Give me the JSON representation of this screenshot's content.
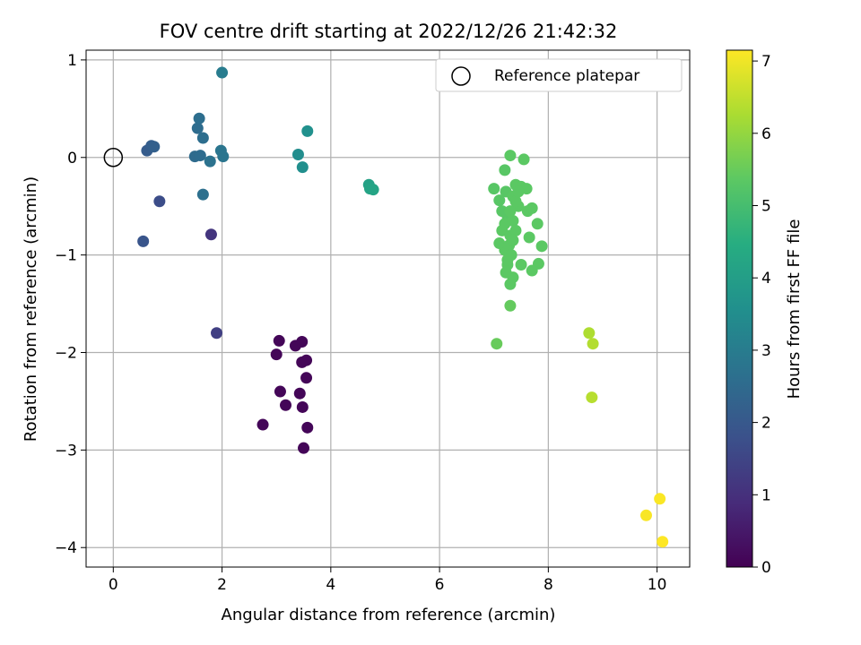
{
  "chart_data": {
    "type": "scatter",
    "title": "FOV centre drift starting at 2022/12/26 21:42:32",
    "xlabel": "Angular distance from reference (arcmin)",
    "ylabel": "Rotation from reference (arcmin)",
    "xlim": [
      -0.5,
      10.6
    ],
    "ylim": [
      -4.2,
      1.1
    ],
    "xticks": [
      0,
      2,
      4,
      6,
      8,
      10
    ],
    "xtick_labels": [
      "0",
      "2",
      "4",
      "6",
      "8",
      "10"
    ],
    "yticks": [
      1,
      0,
      -1,
      -2,
      -3,
      -4
    ],
    "ytick_labels": [
      "1",
      "0",
      "−1",
      "−2",
      "−3",
      "−4"
    ],
    "grid": true,
    "legend": {
      "position": "top-right",
      "label": "Reference platepar"
    },
    "reference_point": {
      "x": 0,
      "y": 0
    },
    "colorbar": {
      "label": "Hours from first FF file",
      "range": [
        0,
        7.15
      ],
      "ticks": [
        0,
        1,
        2,
        3,
        4,
        5,
        6,
        7
      ],
      "tick_labels": [
        "0",
        "1",
        "2",
        "3",
        "4",
        "5",
        "6",
        "7"
      ],
      "colormap": "viridis",
      "stops": [
        "#440154",
        "#472c7a",
        "#3b518b",
        "#2c718e",
        "#21908d",
        "#27ad81",
        "#5cc863",
        "#aadc32",
        "#fde725"
      ]
    },
    "points": [
      {
        "x": 2.75,
        "y": -2.74,
        "t": 0.1
      },
      {
        "x": 3.05,
        "y": -1.88,
        "t": 0.1
      },
      {
        "x": 3.0,
        "y": -2.02,
        "t": 0.1
      },
      {
        "x": 3.07,
        "y": -2.4,
        "t": 0.1
      },
      {
        "x": 3.17,
        "y": -2.54,
        "t": 0.1
      },
      {
        "x": 3.35,
        "y": -1.93,
        "t": 0.1
      },
      {
        "x": 3.47,
        "y": -1.89,
        "t": 0.1
      },
      {
        "x": 3.47,
        "y": -2.1,
        "t": 0.1
      },
      {
        "x": 3.55,
        "y": -2.08,
        "t": 0.1
      },
      {
        "x": 3.43,
        "y": -2.42,
        "t": 0.1
      },
      {
        "x": 3.55,
        "y": -2.26,
        "t": 0.1
      },
      {
        "x": 3.48,
        "y": -2.56,
        "t": 0.1
      },
      {
        "x": 3.57,
        "y": -2.77,
        "t": 0.1
      },
      {
        "x": 3.5,
        "y": -2.98,
        "t": 0.1
      },
      {
        "x": 1.8,
        "y": -0.79,
        "t": 1.1
      },
      {
        "x": 1.9,
        "y": -1.8,
        "t": 1.35
      },
      {
        "x": 0.85,
        "y": -0.45,
        "t": 1.7
      },
      {
        "x": 0.55,
        "y": -0.86,
        "t": 1.9
      },
      {
        "x": 0.62,
        "y": 0.07,
        "t": 2.1
      },
      {
        "x": 0.7,
        "y": 0.12,
        "t": 2.15
      },
      {
        "x": 0.75,
        "y": 0.11,
        "t": 2.2
      },
      {
        "x": 1.5,
        "y": 0.01,
        "t": 2.5
      },
      {
        "x": 1.6,
        "y": 0.02,
        "t": 2.55
      },
      {
        "x": 1.55,
        "y": 0.3,
        "t": 2.55
      },
      {
        "x": 1.58,
        "y": 0.4,
        "t": 2.6
      },
      {
        "x": 1.65,
        "y": 0.2,
        "t": 2.6
      },
      {
        "x": 1.65,
        "y": -0.38,
        "t": 2.65
      },
      {
        "x": 1.78,
        "y": -0.04,
        "t": 2.7
      },
      {
        "x": 1.98,
        "y": 0.07,
        "t": 2.8
      },
      {
        "x": 2.02,
        "y": 0.01,
        "t": 2.8
      },
      {
        "x": 2.0,
        "y": 0.87,
        "t": 3.0
      },
      {
        "x": 3.4,
        "y": 0.03,
        "t": 3.5
      },
      {
        "x": 3.48,
        "y": -0.1,
        "t": 3.55
      },
      {
        "x": 3.57,
        "y": 0.27,
        "t": 3.6
      },
      {
        "x": 4.7,
        "y": -0.28,
        "t": 4.1
      },
      {
        "x": 4.72,
        "y": -0.32,
        "t": 4.15
      },
      {
        "x": 4.78,
        "y": -0.33,
        "t": 4.2
      },
      {
        "x": 7.0,
        "y": -0.32,
        "t": 5.3
      },
      {
        "x": 7.1,
        "y": -0.44,
        "t": 5.3
      },
      {
        "x": 7.15,
        "y": -0.55,
        "t": 5.3
      },
      {
        "x": 7.2,
        "y": -0.13,
        "t": 5.3
      },
      {
        "x": 7.22,
        "y": -0.35,
        "t": 5.3
      },
      {
        "x": 7.25,
        "y": -0.6,
        "t": 5.3
      },
      {
        "x": 7.3,
        "y": 0.02,
        "t": 5.35
      },
      {
        "x": 7.35,
        "y": -0.4,
        "t": 5.35
      },
      {
        "x": 7.4,
        "y": -0.28,
        "t": 5.35
      },
      {
        "x": 7.45,
        "y": -0.5,
        "t": 5.35
      },
      {
        "x": 7.5,
        "y": -0.3,
        "t": 5.35
      },
      {
        "x": 7.55,
        "y": -0.02,
        "t": 5.35
      },
      {
        "x": 7.6,
        "y": -0.32,
        "t": 5.35
      },
      {
        "x": 7.62,
        "y": -0.55,
        "t": 5.35
      },
      {
        "x": 7.7,
        "y": -0.52,
        "t": 5.35
      },
      {
        "x": 7.8,
        "y": -0.68,
        "t": 5.35
      },
      {
        "x": 7.65,
        "y": -0.82,
        "t": 5.35
      },
      {
        "x": 7.88,
        "y": -0.91,
        "t": 5.35
      },
      {
        "x": 7.82,
        "y": -1.09,
        "t": 5.35
      },
      {
        "x": 7.7,
        "y": -1.16,
        "t": 5.35
      },
      {
        "x": 7.5,
        "y": -1.1,
        "t": 5.35
      },
      {
        "x": 7.35,
        "y": -1.23,
        "t": 5.35
      },
      {
        "x": 7.3,
        "y": -1.3,
        "t": 5.35
      },
      {
        "x": 7.25,
        "y": -1.1,
        "t": 5.35
      },
      {
        "x": 7.2,
        "y": -0.95,
        "t": 5.35
      },
      {
        "x": 7.1,
        "y": -0.88,
        "t": 5.35
      },
      {
        "x": 7.15,
        "y": -0.75,
        "t": 5.35
      },
      {
        "x": 7.2,
        "y": -0.68,
        "t": 5.35
      },
      {
        "x": 7.3,
        "y": -0.8,
        "t": 5.35
      },
      {
        "x": 7.35,
        "y": -0.65,
        "t": 5.35
      },
      {
        "x": 7.4,
        "y": -0.75,
        "t": 5.35
      },
      {
        "x": 7.28,
        "y": -0.9,
        "t": 5.35
      },
      {
        "x": 7.32,
        "y": -1.0,
        "t": 5.35
      },
      {
        "x": 7.25,
        "y": -1.05,
        "t": 5.35
      },
      {
        "x": 7.22,
        "y": -1.18,
        "t": 5.35
      },
      {
        "x": 7.4,
        "y": -0.45,
        "t": 5.35
      },
      {
        "x": 7.45,
        "y": -0.35,
        "t": 5.35
      },
      {
        "x": 7.3,
        "y": -0.55,
        "t": 5.35
      },
      {
        "x": 7.35,
        "y": -0.85,
        "t": 5.35
      },
      {
        "x": 7.3,
        "y": -1.52,
        "t": 5.45
      },
      {
        "x": 7.05,
        "y": -1.91,
        "t": 5.5
      },
      {
        "x": 8.75,
        "y": -1.8,
        "t": 6.3
      },
      {
        "x": 8.82,
        "y": -1.91,
        "t": 6.35
      },
      {
        "x": 8.8,
        "y": -2.46,
        "t": 6.4
      },
      {
        "x": 9.8,
        "y": -3.67,
        "t": 7.1
      },
      {
        "x": 10.05,
        "y": -3.5,
        "t": 7.12
      },
      {
        "x": 10.1,
        "y": -3.94,
        "t": 7.15
      }
    ]
  }
}
